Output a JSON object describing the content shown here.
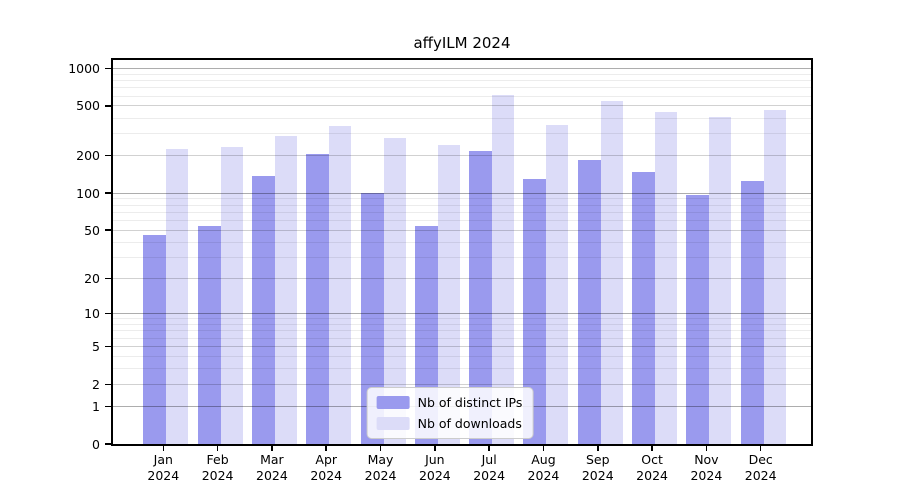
{
  "chart_data": {
    "type": "bar",
    "title": "affyILM 2024",
    "categories": [
      "Jan 2024",
      "Feb 2024",
      "Mar 2024",
      "Apr 2024",
      "May 2024",
      "Jun 2024",
      "Jul 2024",
      "Aug 2024",
      "Sep 2024",
      "Oct 2024",
      "Nov 2024",
      "Dec 2024"
    ],
    "series": [
      {
        "name": "Nb of distinct IPs",
        "color": "#9a9aee",
        "values": [
          46,
          54,
          138,
          205,
          100,
          54,
          218,
          130,
          185,
          148,
          97,
          124
        ]
      },
      {
        "name": "Nb of downloads",
        "color": "#dcdcf8",
        "values": [
          225,
          235,
          287,
          345,
          276,
          242,
          615,
          352,
          545,
          448,
          410,
          462
        ]
      }
    ],
    "xlabel": "",
    "ylabel": "",
    "yscale": "log1p",
    "ylim": [
      0,
      1000
    ],
    "yticks": [
      0,
      1,
      2,
      5,
      10,
      20,
      50,
      100,
      200,
      500,
      1000
    ],
    "minor_gridlines": [
      3,
      4,
      6,
      7,
      8,
      9,
      30,
      40,
      60,
      70,
      80,
      90,
      300,
      400,
      600,
      700,
      800,
      900
    ],
    "decade_gridlines": [
      1,
      10,
      100,
      1000
    ],
    "grid": true,
    "legend_position": "lower center"
  }
}
